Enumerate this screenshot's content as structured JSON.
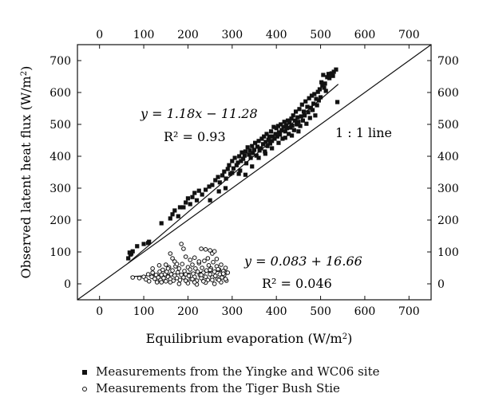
{
  "chart_data": {
    "type": "scatter",
    "xlabel": "Equilibrium evaporation (W/m",
    "xlabel_sup": "2",
    "xlabel_end": ")",
    "ylabel": "Observed latent heat flux (W/m",
    "ylabel_sup": "2",
    "ylabel_end": ")",
    "xlim": [
      -50,
      750
    ],
    "ylim": [
      -50,
      750
    ],
    "x_ticks": [
      0,
      100,
      200,
      300,
      400,
      500,
      600,
      700
    ],
    "y_ticks": [
      0,
      100,
      200,
      300,
      400,
      500,
      600,
      700
    ],
    "grid": false,
    "legend_position": "bottom",
    "series": [
      {
        "name": "Measurements from the Yingke and WC06 site",
        "marker": "filled-square",
        "points": [
          [
            65,
            80
          ],
          [
            68,
            98
          ],
          [
            72,
            95
          ],
          [
            70,
            92
          ],
          [
            75,
            102
          ],
          [
            85,
            118
          ],
          [
            100,
            125
          ],
          [
            110,
            128
          ],
          [
            112,
            132
          ],
          [
            140,
            190
          ],
          [
            160,
            205
          ],
          [
            165,
            218
          ],
          [
            170,
            230
          ],
          [
            178,
            212
          ],
          [
            182,
            240
          ],
          [
            190,
            240
          ],
          [
            195,
            255
          ],
          [
            200,
            268
          ],
          [
            205,
            250
          ],
          [
            210,
            272
          ],
          [
            215,
            285
          ],
          [
            220,
            262
          ],
          [
            225,
            292
          ],
          [
            232,
            280
          ],
          [
            240,
            295
          ],
          [
            248,
            305
          ],
          [
            255,
            310
          ],
          [
            262,
            325
          ],
          [
            268,
            335
          ],
          [
            272,
            318
          ],
          [
            278,
            340
          ],
          [
            282,
            352
          ],
          [
            286,
            330
          ],
          [
            290,
            360
          ],
          [
            293,
            372
          ],
          [
            296,
            345
          ],
          [
            300,
            385
          ],
          [
            303,
            362
          ],
          [
            306,
            395
          ],
          [
            310,
            372
          ],
          [
            313,
            380
          ],
          [
            316,
            400
          ],
          [
            318,
            355
          ],
          [
            320,
            385
          ],
          [
            322,
            412
          ],
          [
            325,
            392
          ],
          [
            328,
            402
          ],
          [
            330,
            415
          ],
          [
            332,
            378
          ],
          [
            335,
            428
          ],
          [
            338,
            405
          ],
          [
            340,
            418
          ],
          [
            342,
            395
          ],
          [
            345,
            432
          ],
          [
            347,
            410
          ],
          [
            350,
            420
          ],
          [
            352,
            442
          ],
          [
            355,
            402
          ],
          [
            357,
            430
          ],
          [
            360,
            448
          ],
          [
            362,
            418
          ],
          [
            365,
            425
          ],
          [
            367,
            455
          ],
          [
            370,
            438
          ],
          [
            372,
            462
          ],
          [
            374,
            415
          ],
          [
            376,
            445
          ],
          [
            378,
            470
          ],
          [
            380,
            432
          ],
          [
            382,
            452
          ],
          [
            384,
            462
          ],
          [
            386,
            440
          ],
          [
            388,
            478
          ],
          [
            390,
            448
          ],
          [
            392,
            462
          ],
          [
            394,
            492
          ],
          [
            396,
            455
          ],
          [
            398,
            470
          ],
          [
            400,
            488
          ],
          [
            402,
            462
          ],
          [
            404,
            495
          ],
          [
            406,
            475
          ],
          [
            408,
            468
          ],
          [
            410,
            500
          ],
          [
            412,
            482
          ],
          [
            414,
            455
          ],
          [
            416,
            492
          ],
          [
            418,
            508
          ],
          [
            420,
            478
          ],
          [
            422,
            498
          ],
          [
            424,
            488
          ],
          [
            426,
            512
          ],
          [
            428,
            470
          ],
          [
            430,
            505
          ],
          [
            432,
            490
          ],
          [
            434,
            518
          ],
          [
            436,
            496
          ],
          [
            438,
            528
          ],
          [
            440,
            482
          ],
          [
            442,
            512
          ],
          [
            444,
            540
          ],
          [
            446,
            500
          ],
          [
            448,
            522
          ],
          [
            450,
            508
          ],
          [
            452,
            548
          ],
          [
            454,
            495
          ],
          [
            456,
            525
          ],
          [
            458,
            562
          ],
          [
            460,
            512
          ],
          [
            462,
            540
          ],
          [
            464,
            528
          ],
          [
            466,
            572
          ],
          [
            468,
            502
          ],
          [
            470,
            555
          ],
          [
            472,
            538
          ],
          [
            474,
            582
          ],
          [
            476,
            520
          ],
          [
            478,
            552
          ],
          [
            480,
            590
          ],
          [
            482,
            545
          ],
          [
            484,
            565
          ],
          [
            486,
            595
          ],
          [
            488,
            528
          ],
          [
            490,
            580
          ],
          [
            492,
            560
          ],
          [
            494,
            602
          ],
          [
            496,
            575
          ],
          [
            498,
            610
          ],
          [
            500,
            585
          ],
          [
            502,
            632
          ],
          [
            504,
            622
          ],
          [
            506,
            655
          ],
          [
            508,
            615
          ],
          [
            510,
            628
          ],
          [
            512,
            605
          ],
          [
            515,
            648
          ],
          [
            518,
            658
          ],
          [
            520,
            645
          ],
          [
            522,
            658
          ],
          [
            525,
            660
          ],
          [
            528,
            652
          ],
          [
            530,
            665
          ],
          [
            535,
            672
          ],
          [
            538,
            570
          ],
          [
            250,
            262
          ],
          [
            270,
            290
          ],
          [
            285,
            300
          ],
          [
            300,
            348
          ],
          [
            315,
            345
          ],
          [
            330,
            342
          ],
          [
            345,
            368
          ],
          [
            360,
            395
          ],
          [
            375,
            408
          ],
          [
            390,
            425
          ],
          [
            405,
            442
          ],
          [
            420,
            458
          ],
          [
            435,
            465
          ],
          [
            450,
            478
          ]
        ]
      },
      {
        "name": "Measurements from the Tiger Bush Stie",
        "marker": "open-circle",
        "points": [
          [
            75,
            20
          ],
          [
            90,
            18
          ],
          [
            100,
            22
          ],
          [
            105,
            14
          ],
          [
            110,
            30
          ],
          [
            112,
            8
          ],
          [
            118,
            22
          ],
          [
            120,
            35
          ],
          [
            125,
            16
          ],
          [
            128,
            28
          ],
          [
            130,
            5
          ],
          [
            133,
            20
          ],
          [
            136,
            38
          ],
          [
            138,
            12
          ],
          [
            140,
            28
          ],
          [
            143,
            44
          ],
          [
            145,
            18
          ],
          [
            148,
            30
          ],
          [
            150,
            8
          ],
          [
            152,
            38
          ],
          [
            155,
            22
          ],
          [
            157,
            52
          ],
          [
            160,
            15
          ],
          [
            162,
            30
          ],
          [
            165,
            42
          ],
          [
            167,
            10
          ],
          [
            170,
            26
          ],
          [
            172,
            55
          ],
          [
            175,
            18
          ],
          [
            177,
            36
          ],
          [
            180,
            48
          ],
          [
            182,
            12
          ],
          [
            185,
            28
          ],
          [
            187,
            62
          ],
          [
            190,
            20
          ],
          [
            192,
            40
          ],
          [
            195,
            30
          ],
          [
            197,
            8
          ],
          [
            200,
            52
          ],
          [
            202,
            25
          ],
          [
            205,
            45
          ],
          [
            207,
            15
          ],
          [
            210,
            60
          ],
          [
            212,
            32
          ],
          [
            215,
            22
          ],
          [
            217,
            48
          ],
          [
            220,
            10
          ],
          [
            222,
            38
          ],
          [
            225,
            65
          ],
          [
            227,
            28
          ],
          [
            230,
            18
          ],
          [
            232,
            50
          ],
          [
            235,
            35
          ],
          [
            237,
            72
          ],
          [
            240,
            22
          ],
          [
            242,
            42
          ],
          [
            245,
            12
          ],
          [
            247,
            58
          ],
          [
            250,
            30
          ],
          [
            252,
            48
          ],
          [
            255,
            20
          ],
          [
            257,
            68
          ],
          [
            260,
            38
          ],
          [
            262,
            25
          ],
          [
            265,
            55
          ],
          [
            267,
            15
          ],
          [
            270,
            45
          ],
          [
            272,
            30
          ],
          [
            275,
            60
          ],
          [
            277,
            20
          ],
          [
            280,
            40
          ],
          [
            282,
            28
          ],
          [
            285,
            50
          ],
          [
            287,
            10
          ],
          [
            290,
            35
          ],
          [
            160,
            95
          ],
          [
            165,
            80
          ],
          [
            185,
            125
          ],
          [
            190,
            110
          ],
          [
            195,
            85
          ],
          [
            230,
            110
          ],
          [
            240,
            108
          ],
          [
            250,
            105
          ],
          [
            255,
            95
          ],
          [
            260,
            102
          ],
          [
            215,
            82
          ],
          [
            205,
            75
          ],
          [
            225,
            70
          ],
          [
            245,
            80
          ],
          [
            265,
            78
          ],
          [
            150,
            60
          ],
          [
            170,
            70
          ],
          [
            120,
            48
          ],
          [
            135,
            58
          ],
          [
            160,
            5
          ],
          [
            180,
            0
          ],
          [
            200,
            2
          ],
          [
            220,
            -2
          ],
          [
            240,
            4
          ],
          [
            260,
            0
          ],
          [
            275,
            5
          ],
          [
            195,
            10
          ],
          [
            215,
            5
          ],
          [
            235,
            8
          ],
          [
            255,
            12
          ],
          [
            270,
            12
          ],
          [
            285,
            15
          ],
          [
            140,
            5
          ],
          [
            155,
            48
          ],
          [
            175,
            62
          ],
          [
            210,
            15
          ],
          [
            230,
            28
          ],
          [
            250,
            44
          ],
          [
            268,
            46
          ],
          [
            280,
            32
          ]
        ]
      }
    ],
    "fits": [
      {
        "slope": 1.18,
        "intercept": -11.28,
        "x_range": [
          65,
          540
        ],
        "equation": "y = 1.18x − 11.28",
        "r2": "R² = 0.93"
      },
      {
        "slope": 0.083,
        "intercept": 16.66,
        "x_range": [
          70,
          290
        ],
        "equation": "y = 0.083 + 16.66",
        "r2": "R² = 0.046"
      }
    ],
    "reference_line": {
      "label": "1 : 1 line",
      "x_range": [
        -50,
        750
      ]
    }
  }
}
